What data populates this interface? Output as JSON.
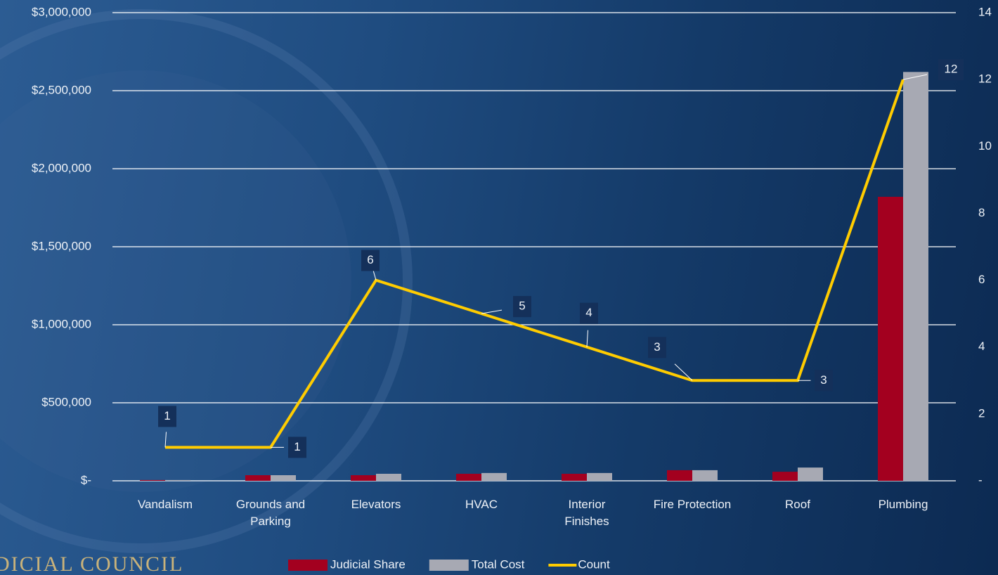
{
  "chart_data": {
    "type": "bar_line",
    "categories": [
      "Vandalism",
      "Grounds and Parking",
      "Elevators",
      "HVAC",
      "Interior Finishes",
      "Fire Protection",
      "Roof",
      "Plumbing"
    ],
    "series": [
      {
        "name": "Judicial Share",
        "type": "bar",
        "color": "#a3001f",
        "values": [
          5000,
          36000,
          36000,
          45000,
          45000,
          68000,
          58000,
          1820000
        ]
      },
      {
        "name": "Total Cost",
        "type": "bar",
        "color": "#a7a9b3",
        "values": [
          5000,
          36000,
          45000,
          50000,
          50000,
          68000,
          85000,
          2620000
        ]
      },
      {
        "name": "Count",
        "type": "line",
        "axis": "y2",
        "color": "#ffcc00",
        "values": [
          1,
          1,
          6,
          5,
          4,
          3,
          3,
          12
        ]
      }
    ],
    "ylim": [
      0,
      3000000
    ],
    "yticks": [
      {
        "value": 0,
        "label": "$-"
      },
      {
        "value": 500000,
        "label": "$500,000"
      },
      {
        "value": 1000000,
        "label": "$1,000,000"
      },
      {
        "value": 1500000,
        "label": "$1,500,000"
      },
      {
        "value": 2000000,
        "label": "$2,000,000"
      },
      {
        "value": 2500000,
        "label": "$2,500,000"
      },
      {
        "value": 3000000,
        "label": "$3,000,000"
      }
    ],
    "y2lim": [
      0,
      14
    ],
    "y2ticks": [
      {
        "value": 0,
        "label": "-"
      },
      2,
      4,
      6,
      8,
      10,
      12,
      14
    ],
    "grid": true,
    "legend": "bottom",
    "watermark": "DICIAL COUNCIL"
  }
}
